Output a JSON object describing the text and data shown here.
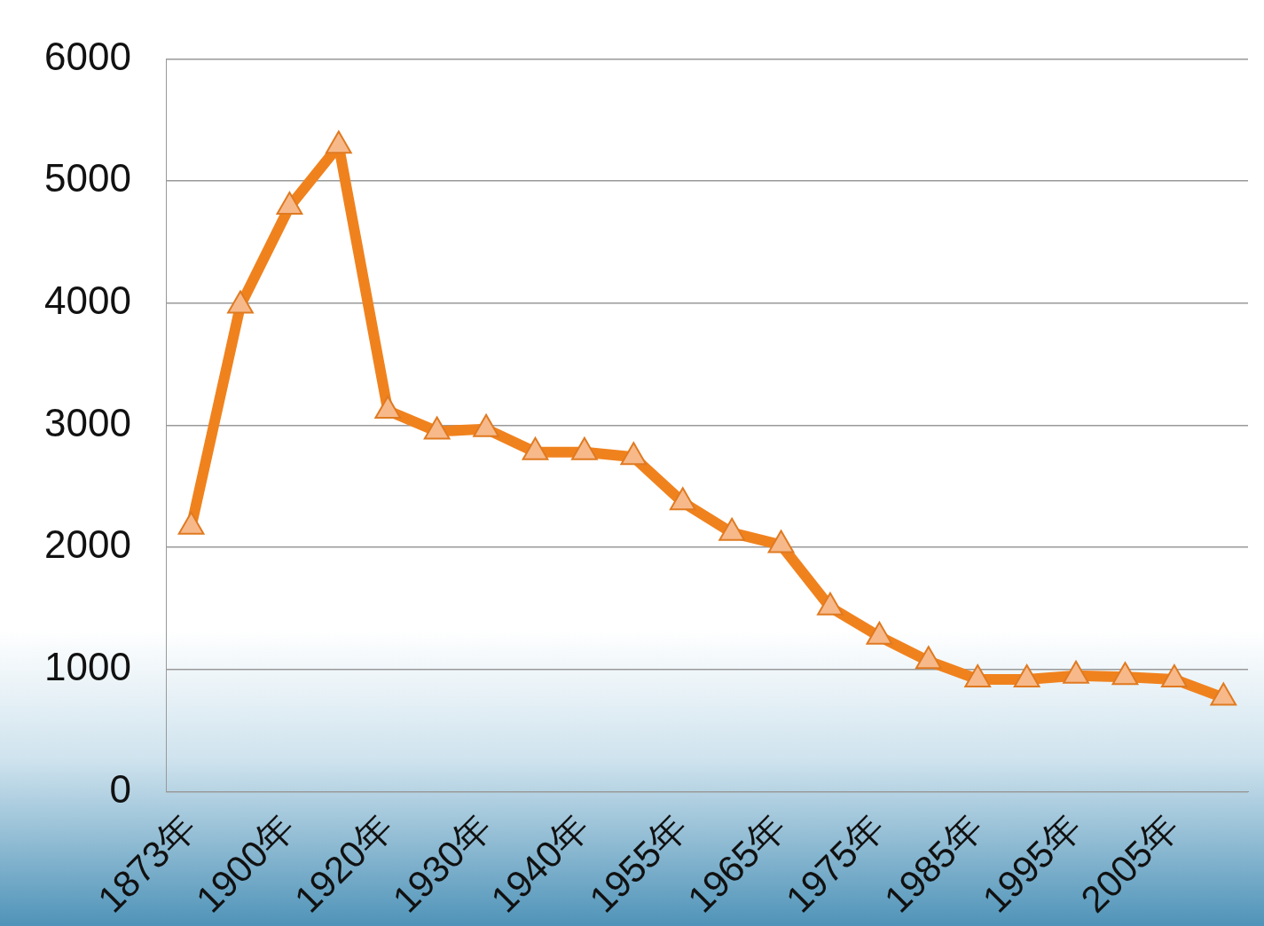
{
  "chart_data": {
    "type": "line",
    "categories": [
      "1873年",
      null,
      "1900年",
      null,
      "1920年",
      null,
      "1930年",
      null,
      "1940年",
      null,
      "1955年",
      null,
      "1965年",
      null,
      "1975年",
      null,
      "1985年",
      null,
      "1995年",
      null,
      "2005年",
      null
    ],
    "series": [
      {
        "color": "#f0821e",
        "values": [
          2170,
          3980,
          4790,
          5290,
          3120,
          2950,
          2970,
          2780,
          2780,
          2740,
          2370,
          2120,
          2020,
          1510,
          1270,
          1070,
          920,
          920,
          950,
          940,
          920,
          770
        ]
      }
    ],
    "ylim": [
      0,
      6000
    ],
    "yticks": [
      0,
      1000,
      2000,
      3000,
      4000,
      5000,
      6000
    ],
    "grid": "y",
    "legend": false,
    "marker": "triangle",
    "line_style": "solid"
  }
}
